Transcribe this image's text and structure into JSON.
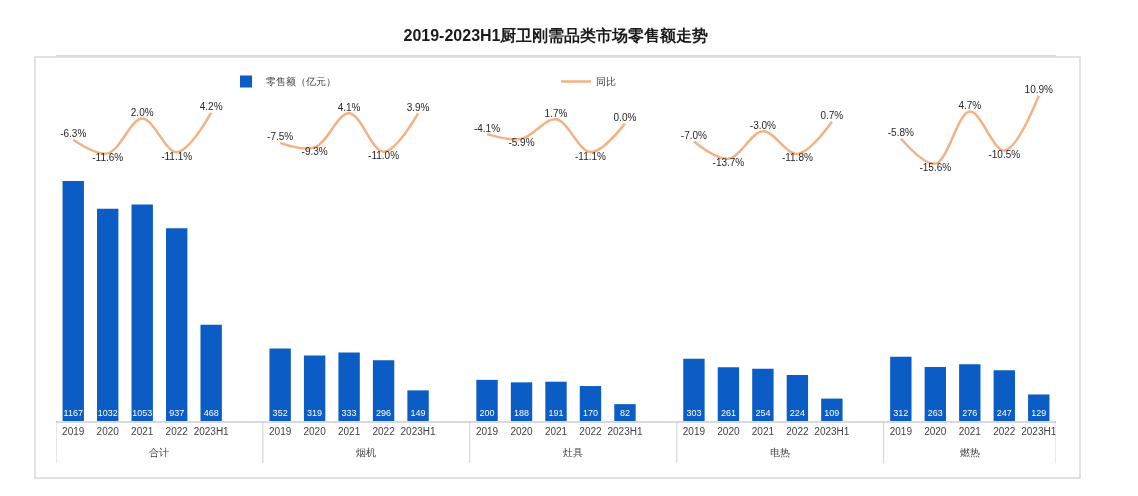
{
  "chart_data": {
    "type": "bar",
    "title": "2019-2023H1厨卫刚需品类市场零售额走势",
    "categories": [
      "2019",
      "2020",
      "2021",
      "2022",
      "2023H1",
      null,
      "2019",
      "2020",
      "2021",
      "2022",
      "2023H1",
      null,
      "2019",
      "2020",
      "2021",
      "2022",
      "2023H1",
      null,
      "2019",
      "2020",
      "2021",
      "2022",
      "2023H1",
      null,
      "2019",
      "2020",
      "2021",
      "2022",
      "2023H1"
    ],
    "series": [
      {
        "name": "零售额（亿元）",
        "color": "#0b5cc5",
        "values": [
          1167,
          1032,
          1053,
          937,
          468,
          null,
          352,
          319,
          333,
          296,
          149,
          null,
          200,
          188,
          191,
          170,
          82,
          null,
          303,
          261,
          254,
          224,
          109,
          null,
          312,
          263,
          276,
          247,
          129
        ],
        "value_labels": [
          "1167",
          "1032",
          "1053",
          "937",
          "468",
          null,
          "352",
          "319",
          "333",
          "296",
          "149",
          null,
          "200",
          "188",
          "191",
          "170",
          "82",
          null,
          "303",
          "261",
          "254",
          "224",
          "109",
          null,
          "312",
          "263",
          "276",
          "247",
          "129"
        ]
      },
      {
        "name": "同比",
        "type": "line",
        "axis": "y2",
        "color": "#f4b183",
        "values": [
          -6.3,
          -11.6,
          2.0,
          -11.1,
          4.2,
          null,
          -7.5,
          -9.3,
          4.1,
          -11.0,
          3.9,
          null,
          -4.1,
          -5.9,
          1.7,
          -11.1,
          0.0,
          null,
          -7.0,
          -13.7,
          -3.0,
          -11.8,
          0.7,
          null,
          -5.8,
          -15.6,
          4.7,
          -10.5,
          10.9
        ],
        "value_labels": [
          "-6.3%",
          "-11.6%",
          "2.0%",
          "-11.1%",
          "4.2%",
          null,
          "-7.5%",
          "-9.3%",
          "4.1%",
          "-11.0%",
          "3.9%",
          null,
          "-4.1%",
          "-5.9%",
          "1.7%",
          "-11.1%",
          "0.0%",
          null,
          "-7.0%",
          "-13.7%",
          "-3.0%",
          "-11.8%",
          "0.7%",
          null,
          "-5.8%",
          "-15.6%",
          "4.7%",
          "-10.5%",
          "10.9%"
        ]
      }
    ],
    "annotations": [
      "合计",
      "烟机",
      "灶具",
      "电热",
      "燃热"
    ],
    "ylim": [
      0,
      1770
    ],
    "y2lim": [
      -116,
      26
    ],
    "legend": "top",
    "tick_labels": "x"
  }
}
